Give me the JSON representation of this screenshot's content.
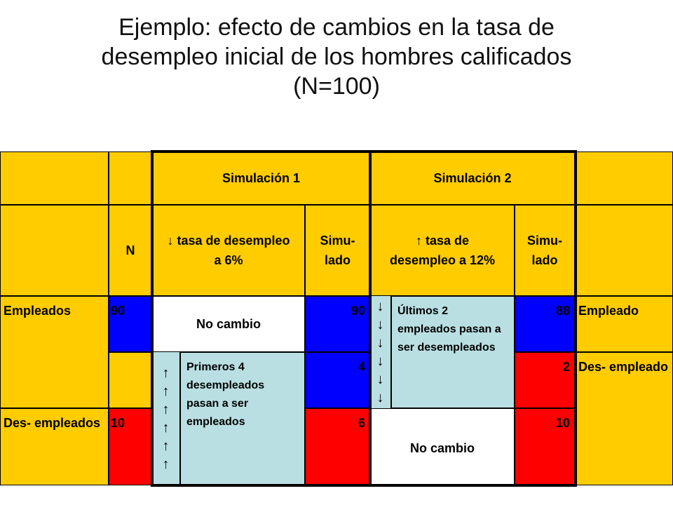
{
  "title": {
    "line1": "Ejemplo: efecto de cambios en la tasa de",
    "line2": "desempleo inicial de los hombres calificados",
    "line3": "(N=100)"
  },
  "header": {
    "sim1": "Simulación 1",
    "sim2": "Simulación 2"
  },
  "subheader": {
    "n": "N",
    "sim1_col": "↓ tasa de desempleo a 6%",
    "sim1_simu": "Simu- lado",
    "sim2_col": "↑ tasa de desempleo a 12%",
    "sim2_simu": "Simu- lado"
  },
  "rows": {
    "empleados_label": "Empleados",
    "empleados_n": "90",
    "sim1_no_cambio": "No cambio",
    "sim1_empleados": "90",
    "sim1_transfer_desempleados": "4",
    "sim1_desempleados": "6",
    "sim1_note": "Primeros 4 desempleados pasan a ser empleados",
    "desempleados_label": "Des- empleados",
    "desempleados_n": "10",
    "sim2_note": "Últimos 2 empleados pasan a ser desempleados",
    "sim2_empleados": "88",
    "sim2_transfer": "2",
    "sim2_desempleados": "10",
    "sim2_no_cambio": "No cambio",
    "right_empleado": "Empleado",
    "right_desempleado": "Des- empleado"
  },
  "arrows": {
    "up": "↑",
    "down": "↓"
  },
  "colors": {
    "yellow": "#ffcc00",
    "blue": "#0000ff",
    "red": "#ff0000",
    "light_cyan": "#b9dfe2"
  }
}
